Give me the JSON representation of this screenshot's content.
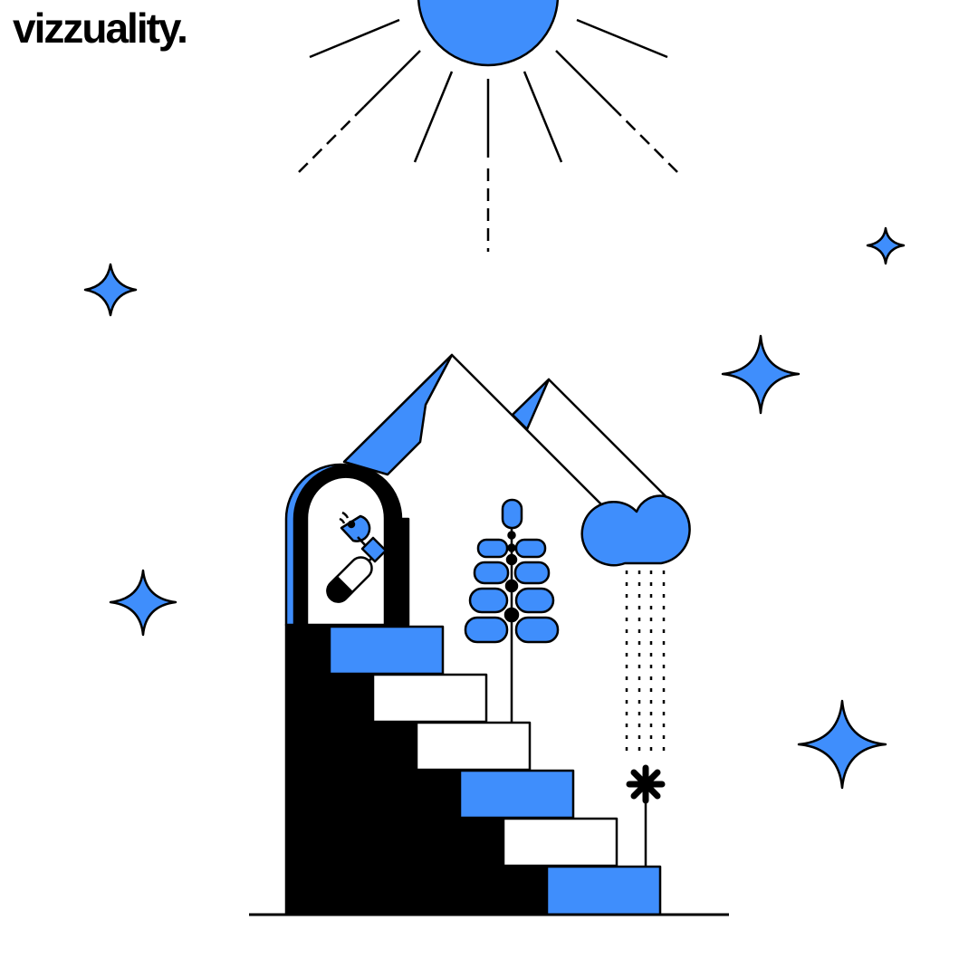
{
  "brand": {
    "logo_text": "vizzuality."
  },
  "colors": {
    "accent": "#3f8efc",
    "ink": "#000000",
    "background": "#ffffff"
  },
  "illustration": {
    "icons": [
      "sun-icon",
      "sparkle-star-icon",
      "mountain-icon",
      "arch-window-icon",
      "satellite-icon",
      "plant-icon",
      "cloud-icon",
      "rain-icon",
      "flower-icon",
      "staircase-icon"
    ]
  }
}
